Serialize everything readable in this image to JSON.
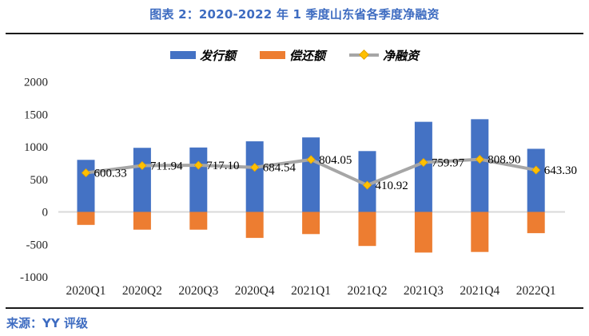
{
  "header": {
    "title": "图表 2：2020-2022 年 1 季度山东省各季度净融资"
  },
  "footer": {
    "source_label": "来源：YY 评级"
  },
  "colors": {
    "accent_blue": "#3E6CC1",
    "bar_issuance": "#4472C4",
    "bar_repayment": "#ED7D31",
    "net_line": "#A6A6A6",
    "net_marker": "#FFC000",
    "zero_gridline": "#D9D9D9",
    "axis_text": "#262626",
    "rule_line": "#1a1a1a"
  },
  "chart_data": {
    "type": "bar",
    "subtype": "bar-line-combo",
    "title": "图表 2：2020-2022 年 1 季度山东省各季度净融资",
    "categories": [
      "2020Q1",
      "2020Q2",
      "2020Q3",
      "2020Q4",
      "2021Q1",
      "2021Q2",
      "2021Q3",
      "2021Q4",
      "2022Q1"
    ],
    "series": [
      {
        "name": "发行额",
        "type": "bar",
        "color": "#4472C4",
        "values_estimated": true,
        "values": [
          800,
          985,
          990,
          1085,
          1145,
          935,
          1385,
          1425,
          970
        ]
      },
      {
        "name": "偿还额",
        "type": "bar",
        "color": "#ED7D31",
        "values_estimated": true,
        "values": [
          -200,
          -273,
          -273,
          -400,
          -341,
          -524,
          -625,
          -616,
          -327
        ]
      },
      {
        "name": "净融资",
        "type": "line",
        "color": "#A6A6A6",
        "marker": "diamond",
        "marker_color": "#FFC000",
        "values": [
          600.33,
          711.94,
          717.1,
          684.54,
          804.05,
          410.92,
          759.97,
          808.9,
          643.3
        ],
        "data_labels": [
          "600.33",
          "711.94",
          "717.10",
          "684.54",
          "804.05",
          "410.92",
          "759.97",
          "808.90",
          "643.30"
        ]
      }
    ],
    "y_axis": {
      "min": -1000,
      "max": 2000,
      "tick_interval": 500,
      "ticks": [
        2000,
        1500,
        1000,
        500,
        0,
        -500,
        -1000
      ],
      "gridlines": "zero-line-only"
    },
    "x_axis": {
      "labels": [
        "2020Q1",
        "2020Q2",
        "2020Q3",
        "2020Q4",
        "2021Q1",
        "2021Q2",
        "2021Q3",
        "2021Q4",
        "2022Q1"
      ]
    },
    "legend": {
      "position": "top",
      "entries": [
        "发行额",
        "偿还额",
        "净融资"
      ]
    }
  }
}
